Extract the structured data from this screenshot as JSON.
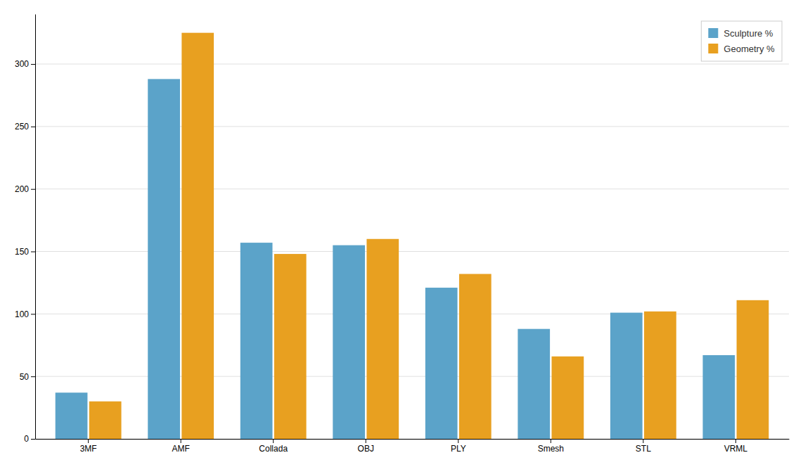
{
  "chart_data": {
    "type": "bar",
    "categories": [
      "3MF",
      "AMF",
      "Collada",
      "OBJ",
      "PLY",
      "Smesh",
      "STL",
      "VRML"
    ],
    "series": [
      {
        "name": "Sculpture %",
        "color": "#5BA3C9",
        "values": [
          37,
          288,
          157,
          155,
          121,
          88,
          101,
          67
        ]
      },
      {
        "name": "Geometry %",
        "color": "#E8A020",
        "values": [
          30,
          325,
          148,
          160,
          132,
          66,
          102,
          111
        ]
      }
    ],
    "ylim": [
      0,
      340
    ],
    "yticks": [
      0,
      50,
      100,
      150,
      200,
      250,
      300
    ],
    "grid": true,
    "legend": "upper right"
  }
}
